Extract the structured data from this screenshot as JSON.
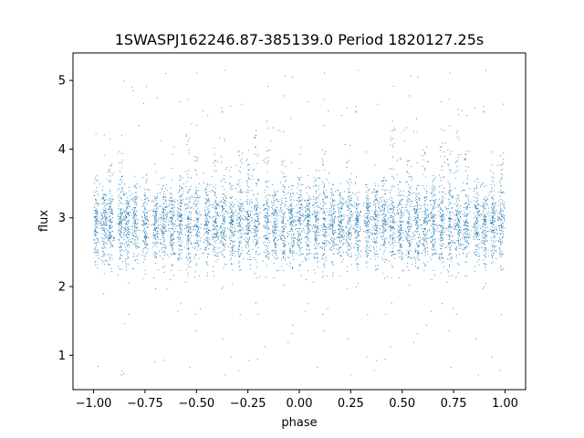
{
  "chart_data": {
    "type": "scatter",
    "title": "1SWASPJ162246.87-385139.0 Period 1820127.25s",
    "xlabel": "phase",
    "ylabel": "flux",
    "xlim": [
      -1.1,
      1.1
    ],
    "ylim": [
      0.5,
      5.4
    ],
    "x_ticks": [
      "−1.00",
      "−0.75",
      "−0.50",
      "−0.25",
      "0.00",
      "0.25",
      "0.50",
      "0.75",
      "1.00"
    ],
    "x_tick_values": [
      -1.0,
      -0.75,
      -0.5,
      -0.25,
      0.0,
      0.25,
      0.5,
      0.75,
      1.0
    ],
    "y_ticks": [
      "1",
      "2",
      "3",
      "4",
      "5"
    ],
    "y_tick_values": [
      1,
      2,
      3,
      4,
      5
    ],
    "grid": false,
    "legend": "none",
    "marker_color": "#1f77b4",
    "series": [
      {
        "phase_range": [
          -1.0,
          1.0
        ],
        "flux_range": [
          0.7,
          5.2
        ],
        "typical_flux_band": [
          2.3,
          3.5
        ],
        "point_count_approx": 14000,
        "observation_clusters": [
          {
            "center": -0.99,
            "peak_flux": 3.6
          },
          {
            "center": -0.95,
            "peak_flux": 3.4
          },
          {
            "center": -0.92,
            "peak_flux": 3.8
          },
          {
            "center": -0.87,
            "peak_flux": 4.0
          },
          {
            "center": -0.84,
            "peak_flux": 3.4
          },
          {
            "center": -0.8,
            "peak_flux": 3.5
          },
          {
            "center": -0.75,
            "peak_flux": 3.9
          },
          {
            "center": -0.7,
            "peak_flux": 3.3
          },
          {
            "center": -0.66,
            "peak_flux": 3.5
          },
          {
            "center": -0.62,
            "peak_flux": 3.3
          },
          {
            "center": -0.58,
            "peak_flux": 3.6
          },
          {
            "center": -0.54,
            "peak_flux": 4.4
          },
          {
            "center": -0.5,
            "peak_flux": 3.9
          },
          {
            "center": -0.45,
            "peak_flux": 3.5
          },
          {
            "center": -0.41,
            "peak_flux": 4.1
          },
          {
            "center": -0.37,
            "peak_flux": 4.2
          },
          {
            "center": -0.33,
            "peak_flux": 3.8
          },
          {
            "center": -0.29,
            "peak_flux": 4.0
          },
          {
            "center": -0.25,
            "peak_flux": 4.0
          },
          {
            "center": -0.21,
            "peak_flux": 4.3
          },
          {
            "center": -0.16,
            "peak_flux": 4.0
          },
          {
            "center": -0.12,
            "peak_flux": 3.4
          },
          {
            "center": -0.08,
            "peak_flux": 3.9
          },
          {
            "center": -0.04,
            "peak_flux": 3.5
          },
          {
            "center": 0.0,
            "peak_flux": 3.6
          },
          {
            "center": 0.04,
            "peak_flux": 3.3
          },
          {
            "center": 0.08,
            "peak_flux": 3.7
          },
          {
            "center": 0.12,
            "peak_flux": 4.0
          },
          {
            "center": 0.16,
            "peak_flux": 3.5
          },
          {
            "center": 0.2,
            "peak_flux": 3.4
          },
          {
            "center": 0.24,
            "peak_flux": 4.1
          },
          {
            "center": 0.28,
            "peak_flux": 3.4
          },
          {
            "center": 0.33,
            "peak_flux": 3.5
          },
          {
            "center": 0.37,
            "peak_flux": 3.5
          },
          {
            "center": 0.41,
            "peak_flux": 3.6
          },
          {
            "center": 0.45,
            "peak_flux": 4.3
          },
          {
            "center": 0.49,
            "peak_flux": 4.0
          },
          {
            "center": 0.53,
            "peak_flux": 3.9
          },
          {
            "center": 0.57,
            "peak_flux": 3.5
          },
          {
            "center": 0.61,
            "peak_flux": 4.0
          },
          {
            "center": 0.65,
            "peak_flux": 3.6
          },
          {
            "center": 0.69,
            "peak_flux": 4.3
          },
          {
            "center": 0.73,
            "peak_flux": 4.0
          },
          {
            "center": 0.77,
            "peak_flux": 4.6
          },
          {
            "center": 0.81,
            "peak_flux": 4.0
          },
          {
            "center": 0.86,
            "peak_flux": 3.6
          },
          {
            "center": 0.9,
            "peak_flux": 3.5
          },
          {
            "center": 0.94,
            "peak_flux": 3.8
          },
          {
            "center": 0.98,
            "peak_flux": 4.0
          }
        ]
      }
    ]
  }
}
